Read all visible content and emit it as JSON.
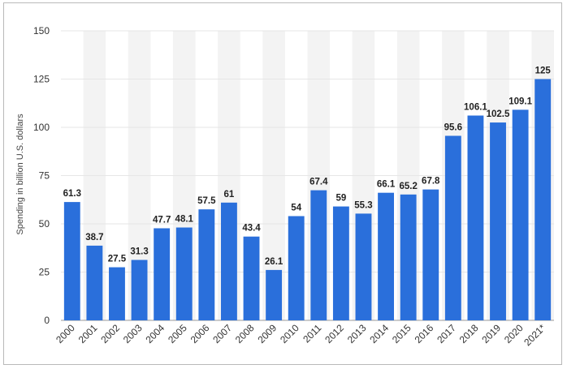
{
  "chart_data": {
    "type": "bar",
    "categories": [
      "2000",
      "2001",
      "2002",
      "2003",
      "2004",
      "2005",
      "2006",
      "2007",
      "2008",
      "2009",
      "2010",
      "2011",
      "2012",
      "2013",
      "2014",
      "2015",
      "2016",
      "2017",
      "2018",
      "2019",
      "2020",
      "2021*"
    ],
    "values": [
      61.3,
      38.7,
      27.5,
      31.3,
      47.7,
      48.1,
      57.5,
      61,
      43.4,
      26.1,
      54,
      67.4,
      59,
      55.3,
      66.1,
      65.2,
      67.8,
      95.6,
      106.1,
      102.5,
      109.1,
      125
    ],
    "value_labels": [
      "61.3",
      "38.7",
      "27.5",
      "31.3",
      "47.7",
      "48.1",
      "57.5",
      "61",
      "43.4",
      "26.1",
      "54",
      "67.4",
      "59",
      "55.3",
      "66.1",
      "65.2",
      "67.8",
      "95.6",
      "106.1",
      "102.5",
      "109.1",
      "125"
    ],
    "title": "",
    "xlabel": "",
    "ylabel": "Spending in billion U.S. dollars",
    "ylim": [
      0,
      150
    ],
    "yticks": [
      0,
      25,
      50,
      75,
      100,
      125,
      150
    ],
    "grid": true,
    "bar_color": "#2a6fdb",
    "stripe_color": "#f3f3f3",
    "grid_color": "#e6e6e6"
  }
}
